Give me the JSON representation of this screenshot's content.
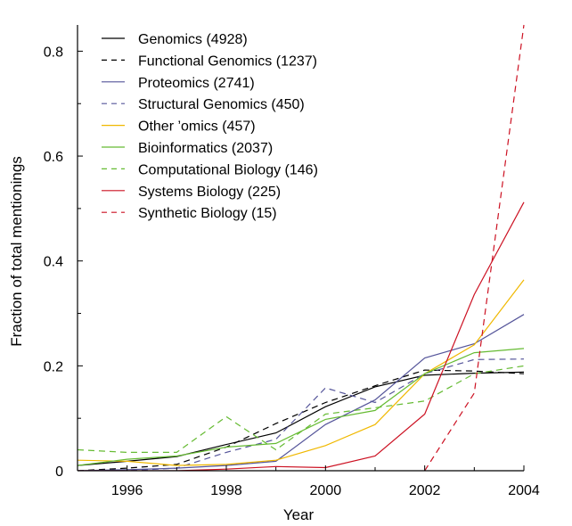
{
  "chart_data": {
    "type": "line",
    "xlabel": "Year",
    "ylabel": "Fraction of total mentionings",
    "xlim": [
      1995,
      2004
    ],
    "ylim": [
      0,
      0.85
    ],
    "xticks": [
      1996,
      1998,
      2000,
      2002,
      2004
    ],
    "yticks": [
      "0",
      "0.2",
      "0.4",
      "0.6",
      "0.8"
    ],
    "legend_position": "top-left",
    "series": [
      {
        "name": "Genomics (4928)",
        "color": "#000000",
        "dash": "solid",
        "x": [
          1995,
          1996,
          1997,
          1998,
          1999,
          2000,
          2001,
          2002,
          2003,
          2004
        ],
        "y": [
          0.01,
          0.018,
          0.027,
          0.05,
          0.072,
          0.122,
          0.16,
          0.182,
          0.186,
          0.188
        ]
      },
      {
        "name": "Functional Genomics (1237)",
        "color": "#000000",
        "dash": "dashed",
        "x": [
          1995,
          1996,
          1997,
          1998,
          1999,
          2000,
          2001,
          2002,
          2003,
          2004
        ],
        "y": [
          0.0,
          0.005,
          0.012,
          0.045,
          0.09,
          0.13,
          0.162,
          0.192,
          0.19,
          0.185
        ]
      },
      {
        "name": "Proteomics (2741)",
        "color": "#55559a",
        "dash": "solid",
        "x": [
          1995,
          1996,
          1997,
          1998,
          1999,
          2000,
          2001,
          2002,
          2003,
          2004
        ],
        "y": [
          0.0,
          0.002,
          0.005,
          0.01,
          0.018,
          0.088,
          0.135,
          0.215,
          0.242,
          0.298
        ]
      },
      {
        "name": "Structural Genomics (450)",
        "color": "#55559a",
        "dash": "dashed",
        "x": [
          1995,
          1996,
          1997,
          1998,
          1999,
          2000,
          2001,
          2002,
          2003,
          2004
        ],
        "y": [
          0.0,
          0.0,
          0.005,
          0.035,
          0.06,
          0.158,
          0.13,
          0.185,
          0.212,
          0.213
        ]
      },
      {
        "name": "Other ’omics (457)",
        "color": "#f0b800",
        "dash": "solid",
        "x": [
          1995,
          1996,
          1997,
          1998,
          1999,
          2000,
          2001,
          2002,
          2003,
          2004
        ],
        "y": [
          0.02,
          0.018,
          0.01,
          0.012,
          0.02,
          0.048,
          0.088,
          0.185,
          0.24,
          0.364
        ]
      },
      {
        "name": "Bioinformatics (2037)",
        "color": "#66bb33",
        "dash": "solid",
        "x": [
          1995,
          1996,
          1997,
          1998,
          1999,
          2000,
          2001,
          2002,
          2003,
          2004
        ],
        "y": [
          0.01,
          0.022,
          0.028,
          0.045,
          0.052,
          0.098,
          0.115,
          0.185,
          0.225,
          0.233
        ]
      },
      {
        "name": "Computational Biology (146)",
        "color": "#66bb33",
        "dash": "dashed",
        "x": [
          1995,
          1996,
          1997,
          1998,
          1999,
          2000,
          2001,
          2002,
          2003,
          2004
        ],
        "y": [
          0.04,
          0.035,
          0.035,
          0.103,
          0.04,
          0.108,
          0.12,
          0.133,
          0.185,
          0.2
        ]
      },
      {
        "name": "Systems Biology (225)",
        "color": "#cc1122",
        "dash": "solid",
        "x": [
          1995,
          1996,
          1997,
          1998,
          1999,
          2000,
          2001,
          2002,
          2003,
          2004
        ],
        "y": [
          0.0,
          0.0,
          0.0,
          0.003,
          0.008,
          0.006,
          0.028,
          0.108,
          0.336,
          0.512
        ]
      },
      {
        "name": "Synthetic Biology (15)",
        "color": "#cc1122",
        "dash": "dashed",
        "x": [
          2002,
          2003,
          2004
        ],
        "y": [
          0.0,
          0.148,
          0.85
        ]
      }
    ]
  }
}
